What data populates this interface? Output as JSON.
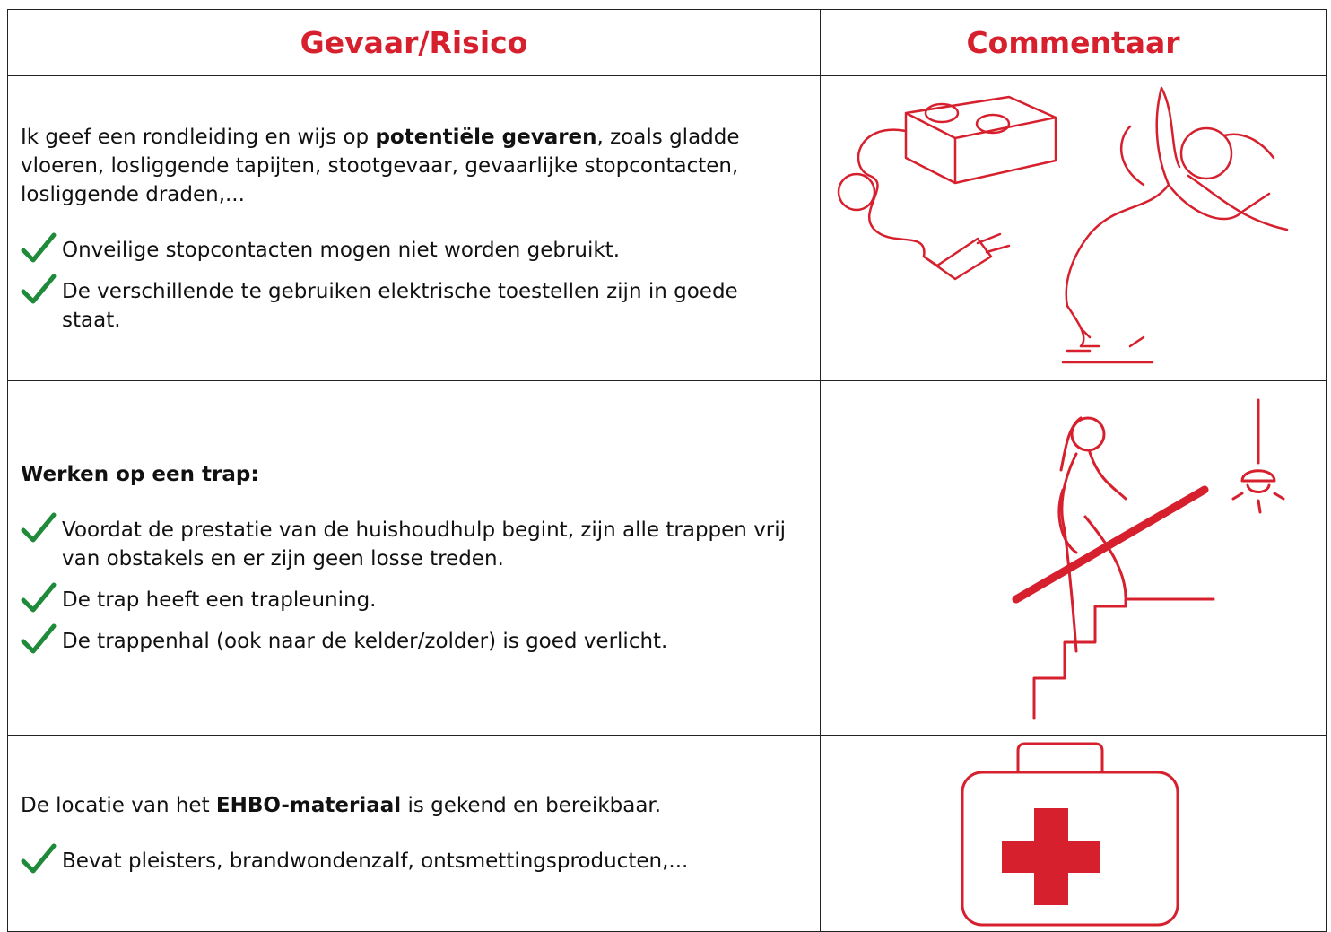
{
  "header": {
    "cells": [
      "Gevaar/Risico",
      "Commentaar"
    ]
  },
  "rows": [
    {
      "intro": [
        "Ik geef een rondleiding en wijs op ",
        "potentiële gevaren",
        ", zoals gladde vloeren, losliggende tapijten, stootgevaar, gevaarlijke stopcontacten, losliggende draden,..."
      ],
      "checks": [
        "Onveilige stopcontacten mogen niet worden gebruikt.",
        "De verschillende te gebruiken elektrische toestellen zijn in goede staat."
      ]
    },
    {
      "intro": [
        "Werken op een trap:"
      ],
      "checks": [
        "Voordat de prestatie van de huishoudhulp begint, zijn alle trappen vrij van obstakels en er zijn geen losse treden.",
        "De trap heeft een trapleuning.",
        "De trappenhal (ook naar de kelder/zolder) is goed verlicht."
      ]
    },
    {
      "intro": [
        "De locatie van het ",
        "EHBO-materiaal",
        " is gekend en bereikbaar."
      ],
      "checks": [
        "Bevat pleisters, brandwondenzalf, ontsmettingsproducten,..."
      ]
    }
  ]
}
